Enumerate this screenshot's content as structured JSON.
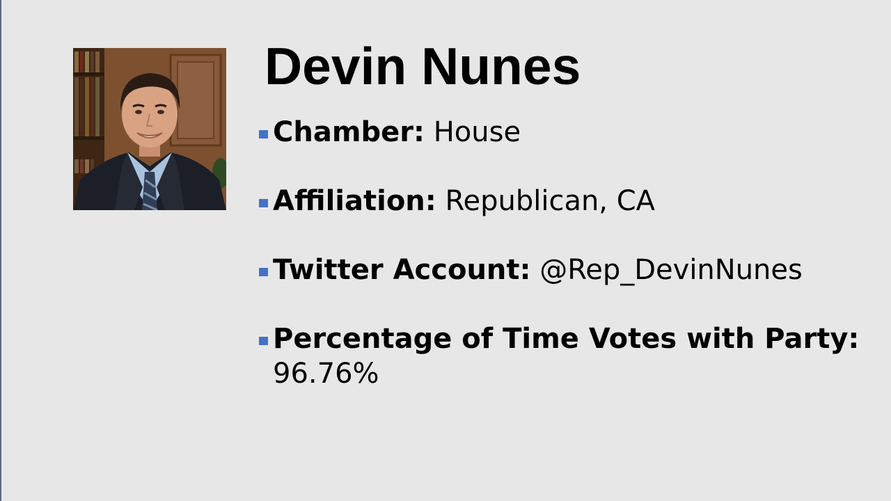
{
  "slide": {
    "title": "Devin Nunes",
    "photo_icon": "portrait-photo",
    "accent_color": "#4472c4",
    "bullets": [
      {
        "label": "Chamber:",
        "value": "House"
      },
      {
        "label": "Affiliation:",
        "value": "Republican, CA"
      },
      {
        "label": "Twitter Account:",
        "value": "@Rep_DevinNunes"
      },
      {
        "label": "Percentage of Time Votes with Party:",
        "value": "96.76%"
      }
    ]
  }
}
